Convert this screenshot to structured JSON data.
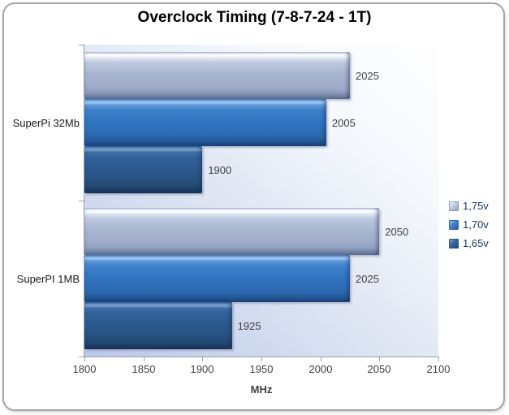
{
  "chart_data": {
    "type": "bar",
    "orientation": "horizontal",
    "title": "Overclock Timing (7-8-7-24 - 1T)",
    "categories": [
      "SuperPi 32Mb",
      "SuperPI 1MB"
    ],
    "series": [
      {
        "name": "1,75v",
        "color": "#aab7d2",
        "values": [
          2025,
          2050
        ]
      },
      {
        "name": "1,70v",
        "color": "#3376c2",
        "values": [
          2005,
          2025
        ]
      },
      {
        "name": "1,65v",
        "color": "#2c5a8f",
        "values": [
          1900,
          1925
        ]
      }
    ],
    "xlabel": "MHz",
    "xlim": [
      1800,
      2100
    ],
    "xticks": [
      1800,
      1850,
      1900,
      1950,
      2000,
      2050,
      2100
    ],
    "grid": false,
    "data_labels": true,
    "legend_position": "right",
    "colors": {
      "plot_gradient_start": "#ffffff",
      "plot_gradient_end": "#b9c7e8",
      "axis": "#97a2b4",
      "text": "#404040",
      "legend_text": "#1f3a66",
      "frame_border": "#a6a6a6"
    }
  }
}
